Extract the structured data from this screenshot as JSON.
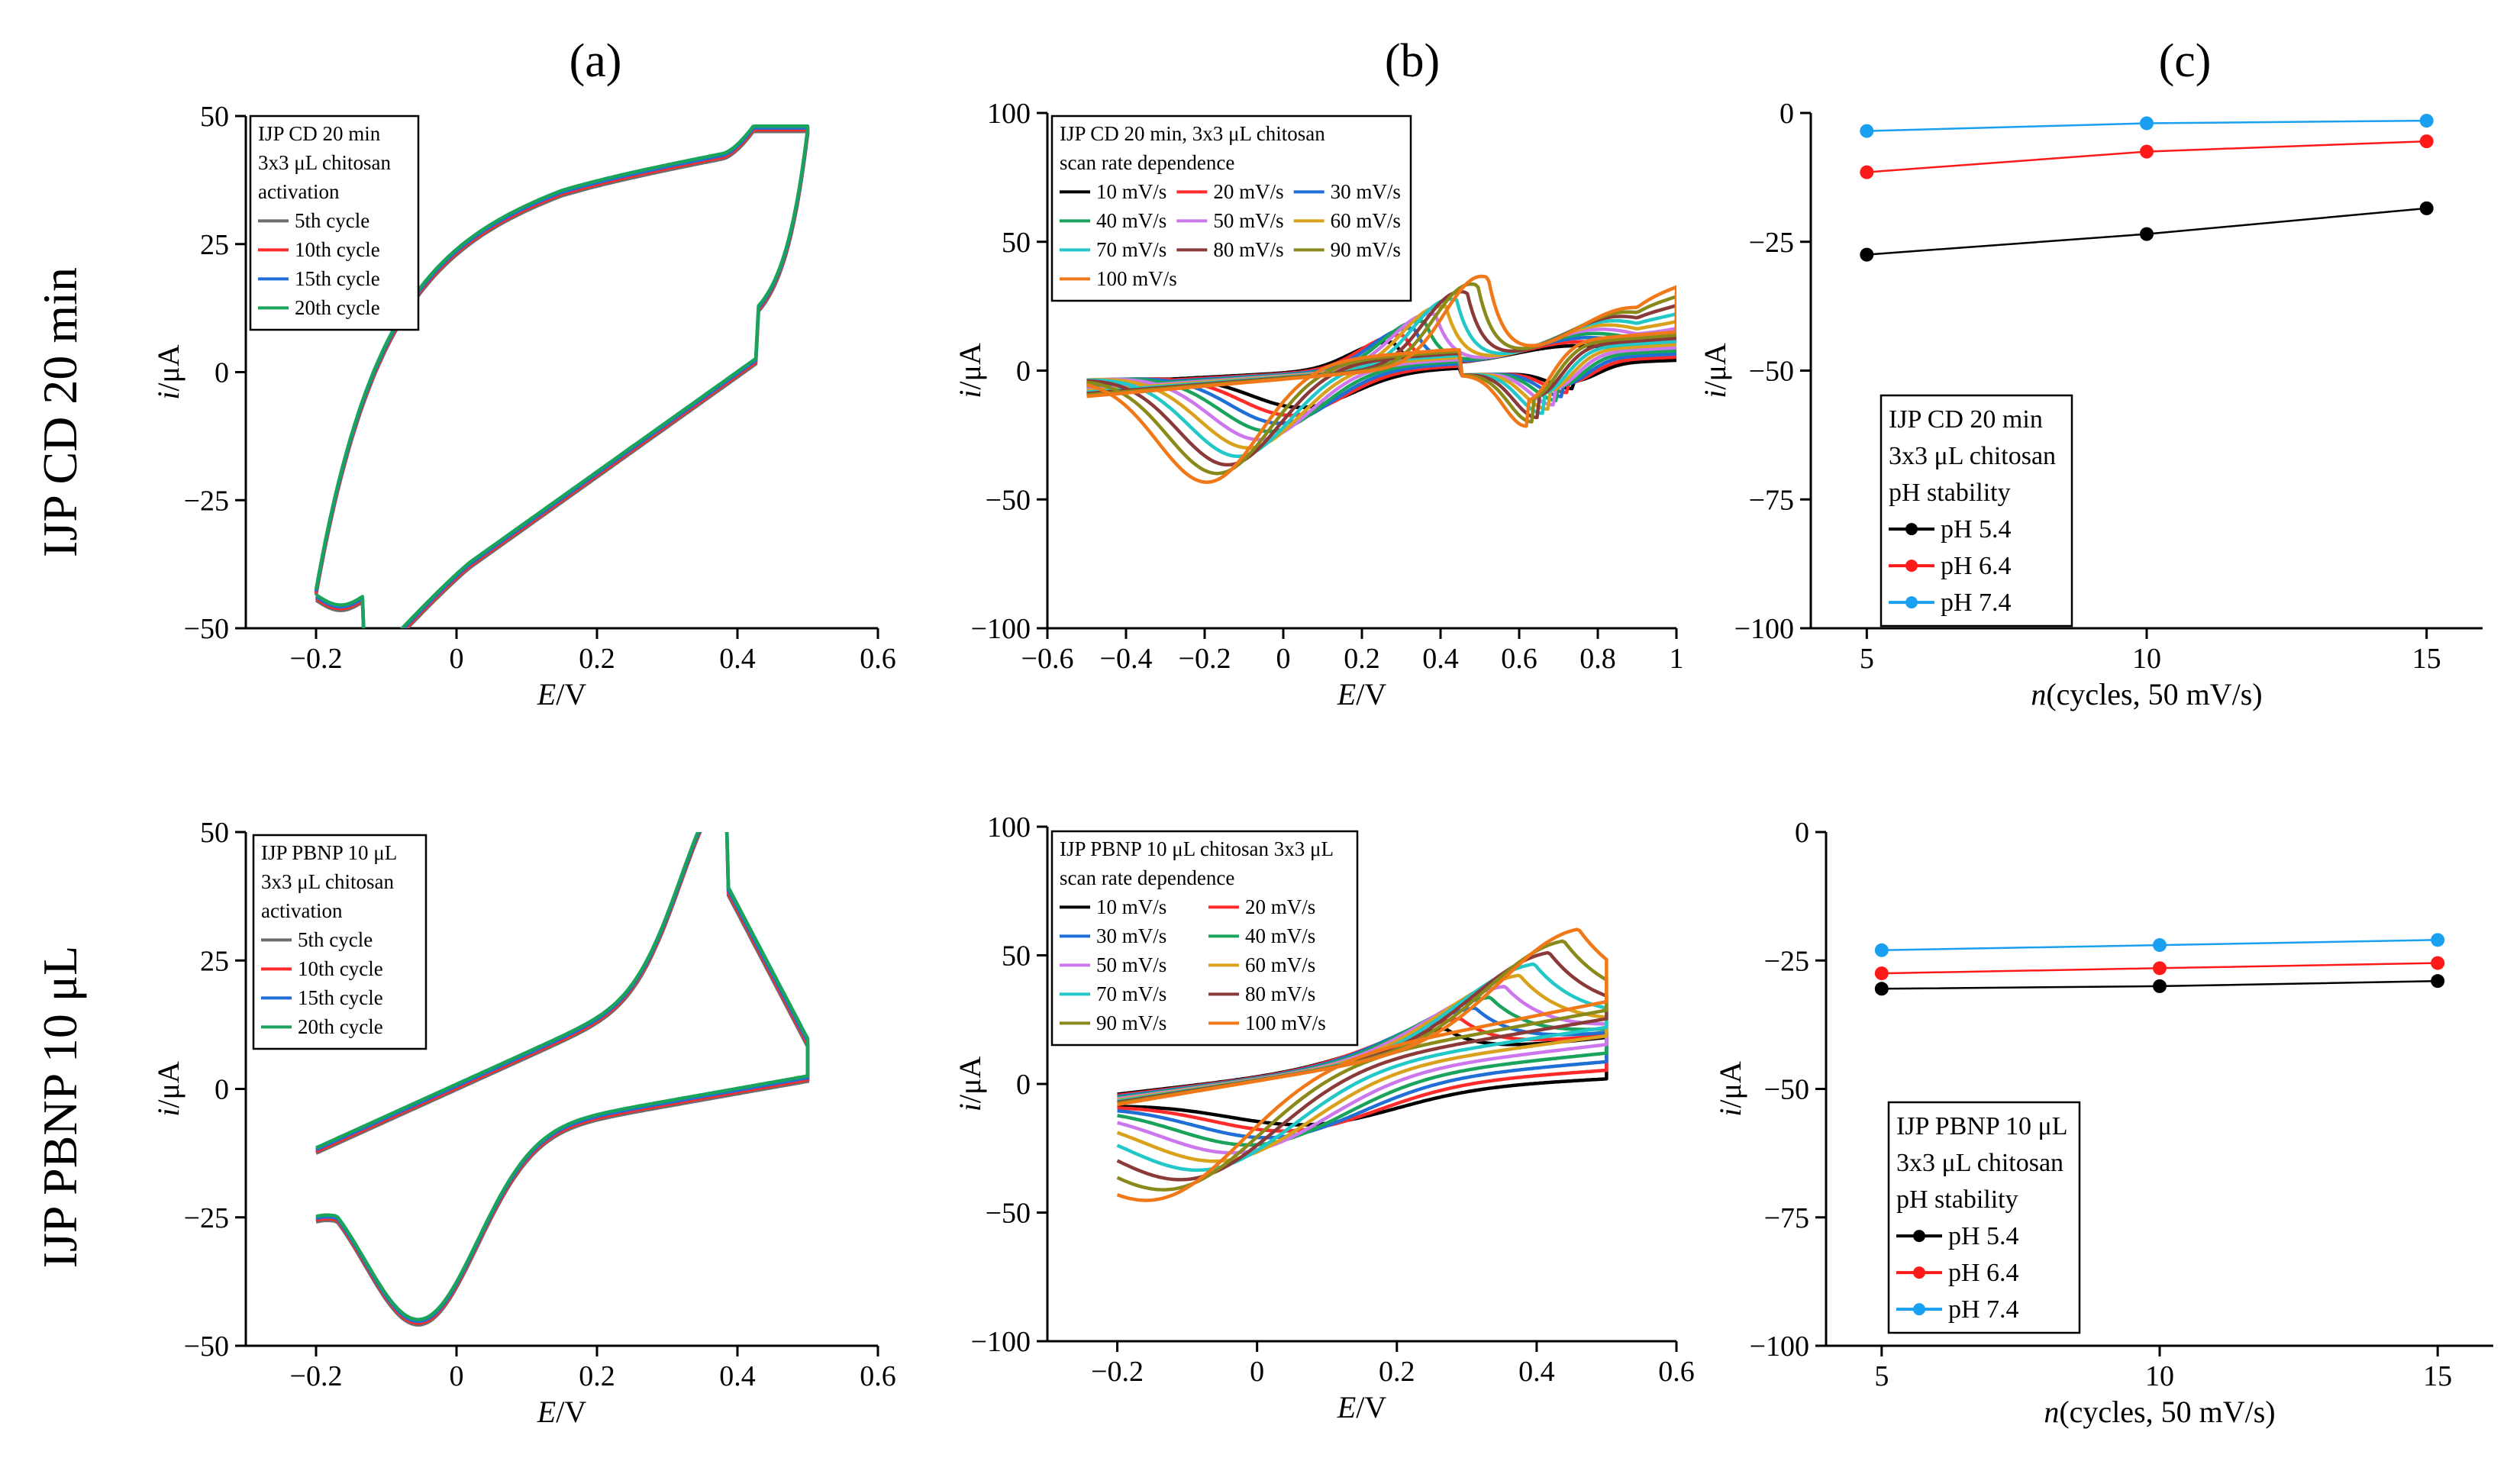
{
  "figure": {
    "panel_letters": [
      "(a)",
      "(b)",
      "(c)"
    ],
    "row_labels": [
      "IJP CD 20 min",
      "IJP PBNP 10 μL"
    ]
  },
  "chart_data": [
    {
      "id": "a1",
      "type": "line",
      "xlabel_it": "E",
      "xlabel_unit": "/V",
      "ylabel_it": "i",
      "ylabel_unit": "/μA",
      "xlim": [
        -0.3,
        0.6
      ],
      "ylim": [
        -50,
        50
      ],
      "xticks": [
        -0.2,
        0,
        0.2,
        0.4,
        0.6
      ],
      "yticks": [
        -50,
        -25,
        0,
        25,
        50
      ],
      "legend_title": [
        "IJP CD 20 min",
        "3x3 μL chitosan",
        "activation"
      ],
      "series": [
        {
          "name": "5th cycle",
          "color": "#6d6d6d"
        },
        {
          "name": "10th cycle",
          "color": "#ff2a2a"
        },
        {
          "name": "15th cycle",
          "color": "#1f6fd6"
        },
        {
          "name": "20th cycle",
          "color": "#1aa35a"
        }
      ],
      "cv_shape": "cd"
    },
    {
      "id": "b1",
      "type": "line",
      "xlabel_it": "E",
      "xlabel_unit": "/V",
      "ylabel_it": "i",
      "ylabel_unit": "/μA",
      "xlim": [
        -0.6,
        1.0
      ],
      "ylim": [
        -100,
        100
      ],
      "xticks": [
        -0.6,
        -0.4,
        -0.2,
        0,
        0.2,
        0.4,
        0.6,
        0.8,
        1
      ],
      "yticks": [
        -100,
        -50,
        0,
        50,
        100
      ],
      "legend_title": [
        "IJP CD 20 min, 3x3 μL chitosan",
        "scan rate dependence"
      ],
      "series": [
        {
          "name": "10 mV/s",
          "color": "#000000"
        },
        {
          "name": "20 mV/s",
          "color": "#ff2a2a"
        },
        {
          "name": "30 mV/s",
          "color": "#1f6fd6"
        },
        {
          "name": "40 mV/s",
          "color": "#1aa35a"
        },
        {
          "name": "50 mV/s",
          "color": "#cc77ee"
        },
        {
          "name": "60 mV/s",
          "color": "#d9a11c"
        },
        {
          "name": "70 mV/s",
          "color": "#22c7c7"
        },
        {
          "name": "80 mV/s",
          "color": "#8b3a3a"
        },
        {
          "name": "90 mV/s",
          "color": "#8a8a1a"
        },
        {
          "name": "100 mV/s",
          "color": "#f07818"
        }
      ],
      "legend_columns": 3,
      "cv_shape": "scan"
    },
    {
      "id": "c1",
      "type": "line",
      "xlabel_it": "n",
      "xlabel_unit": "(cycles, 50 mV/s)",
      "ylabel_it": "i",
      "ylabel_unit": "/μA",
      "xlim": [
        4,
        16
      ],
      "ylim": [
        -100,
        0
      ],
      "xticks": [
        5,
        10,
        15
      ],
      "yticks": [
        -100,
        -75,
        -50,
        -25,
        0
      ],
      "legend_title": [
        "IJP CD 20 min",
        "3x3 μL chitosan",
        "pH stability"
      ],
      "x": [
        5,
        10,
        15
      ],
      "series": [
        {
          "name": "pH 5.4",
          "color": "#000000",
          "values": [
            -27.5,
            -23.5,
            -18.5
          ]
        },
        {
          "name": "pH 6.4",
          "color": "#ff1a1a",
          "values": [
            -11.5,
            -7.5,
            -5.5
          ]
        },
        {
          "name": "pH 7.4",
          "color": "#1aa0f0",
          "values": [
            -3.5,
            -2.0,
            -1.5
          ]
        }
      ]
    },
    {
      "id": "a2",
      "type": "line",
      "xlabel_it": "E",
      "xlabel_unit": "/V",
      "ylabel_it": "i",
      "ylabel_unit": "/μA",
      "xlim": [
        -0.3,
        0.6
      ],
      "ylim": [
        -50,
        50
      ],
      "xticks": [
        -0.2,
        0,
        0.2,
        0.4,
        0.6
      ],
      "yticks": [
        -50,
        -25,
        0,
        25,
        50
      ],
      "legend_title": [
        "IJP PBNP 10 μL",
        "3x3 μL chitosan",
        "activation"
      ],
      "series": [
        {
          "name": "5th cycle",
          "color": "#6d6d6d"
        },
        {
          "name": "10th cycle",
          "color": "#ff2a2a"
        },
        {
          "name": "15th cycle",
          "color": "#1f6fd6"
        },
        {
          "name": "20th cycle",
          "color": "#1aa35a"
        }
      ],
      "cv_shape": "pbnp"
    },
    {
      "id": "b2",
      "type": "line",
      "xlabel_it": "E",
      "xlabel_unit": "/V",
      "ylabel_it": "i",
      "ylabel_unit": "/μA",
      "xlim": [
        -0.3,
        0.6
      ],
      "ylim": [
        -100,
        100
      ],
      "xticks": [
        -0.2,
        0,
        0.2,
        0.4,
        0.6
      ],
      "yticks": [
        -100,
        -50,
        0,
        50,
        100
      ],
      "legend_title": [
        "IJP PBNP 10 μL chitosan 3x3 μL",
        "scan rate dependence"
      ],
      "series": [
        {
          "name": "10 mV/s",
          "color": "#000000"
        },
        {
          "name": "20 mV/s",
          "color": "#ff2a2a"
        },
        {
          "name": "30 mV/s",
          "color": "#1f6fd6"
        },
        {
          "name": "40 mV/s",
          "color": "#1aa35a"
        },
        {
          "name": "50 mV/s",
          "color": "#cc77ee"
        },
        {
          "name": "60 mV/s",
          "color": "#d9a11c"
        },
        {
          "name": "70 mV/s",
          "color": "#22c7c7"
        },
        {
          "name": "80 mV/s",
          "color": "#8b3a3a"
        },
        {
          "name": "90 mV/s",
          "color": "#8a8a1a"
        },
        {
          "name": "100 mV/s",
          "color": "#f07818"
        }
      ],
      "legend_columns": 2,
      "cv_shape": "scan2"
    },
    {
      "id": "c2",
      "type": "line",
      "xlabel_it": "n",
      "xlabel_unit": "(cycles, 50 mV/s)",
      "ylabel_it": "i",
      "ylabel_unit": "/μA",
      "xlim": [
        4,
        16
      ],
      "ylim": [
        -100,
        0
      ],
      "xticks": [
        5,
        10,
        15
      ],
      "yticks": [
        -100,
        -75,
        -50,
        -25,
        0
      ],
      "legend_title": [
        "IJP PBNP 10 μL",
        "3x3 μL chitosan",
        "pH stability"
      ],
      "x": [
        5,
        10,
        15
      ],
      "series": [
        {
          "name": "pH 5.4",
          "color": "#000000",
          "values": [
            -30.5,
            -30.0,
            -29.0
          ]
        },
        {
          "name": "pH 6.4",
          "color": "#ff1a1a",
          "values": [
            -27.5,
            -26.5,
            -25.5
          ]
        },
        {
          "name": "pH 7.4",
          "color": "#1aa0f0",
          "values": [
            -23.0,
            -22.0,
            -21.0
          ]
        }
      ]
    }
  ]
}
